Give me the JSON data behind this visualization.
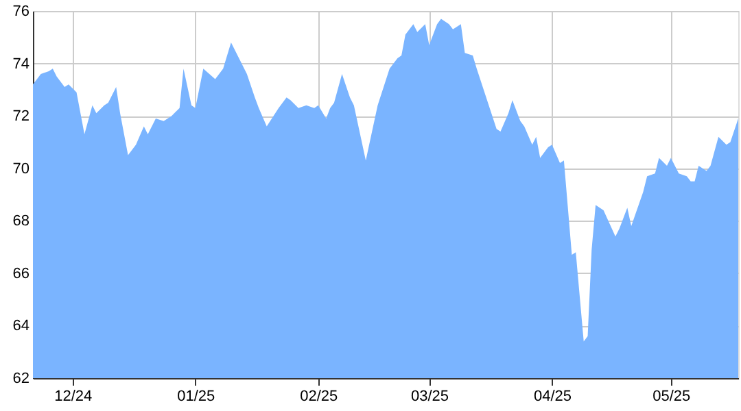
{
  "chart_data": {
    "type": "area",
    "x": [
      "2024-11-21",
      "2024-11-23",
      "2024-11-25",
      "2024-11-26",
      "2024-11-27",
      "2024-11-29",
      "2024-11-30",
      "2024-12-02",
      "2024-12-04",
      "2024-12-06",
      "2024-12-07",
      "2024-12-09",
      "2024-12-10",
      "2024-12-12",
      "2024-12-13",
      "2024-12-15",
      "2024-12-17",
      "2024-12-19",
      "2024-12-20",
      "2024-12-22",
      "2024-12-24",
      "2024-12-26",
      "2024-12-28",
      "2024-12-29",
      "2024-12-31",
      "2025-01-01",
      "2025-01-03",
      "2025-01-06",
      "2025-01-08",
      "2025-01-10",
      "2025-01-14",
      "2025-01-16",
      "2025-01-17",
      "2025-01-19",
      "2025-01-22",
      "2025-01-24",
      "2025-01-25",
      "2025-01-27",
      "2025-01-29",
      "2025-01-31",
      "2025-02-01",
      "2025-02-03",
      "2025-02-04",
      "2025-02-05",
      "2025-02-07",
      "2025-02-09",
      "2025-02-10",
      "2025-02-13",
      "2025-02-16",
      "2025-02-19",
      "2025-02-21",
      "2025-02-22",
      "2025-02-23",
      "2025-02-25",
      "2025-02-26",
      "2025-02-28",
      "2025-03-01",
      "2025-03-03",
      "2025-03-04",
      "2025-03-06",
      "2025-03-07",
      "2025-03-09",
      "2025-03-10",
      "2025-03-12",
      "2025-03-13",
      "2025-03-18",
      "2025-03-19",
      "2025-03-21",
      "2025-03-22",
      "2025-03-24",
      "2025-03-25",
      "2025-03-27",
      "2025-03-28",
      "2025-03-29",
      "2025-03-31",
      "2025-04-01",
      "2025-04-03",
      "2025-04-04",
      "2025-04-06",
      "2025-04-07",
      "2025-04-09",
      "2025-04-10",
      "2025-04-11",
      "2025-04-12",
      "2025-04-14",
      "2025-04-17",
      "2025-04-18",
      "2025-04-20",
      "2025-04-21",
      "2025-04-24",
      "2025-04-25",
      "2025-04-27",
      "2025-04-28",
      "2025-04-30",
      "2025-05-01",
      "2025-05-03",
      "2025-05-05",
      "2025-05-06",
      "2025-05-07",
      "2025-05-08",
      "2025-05-10",
      "2025-05-11",
      "2025-05-13",
      "2025-05-15",
      "2025-05-16",
      "2025-05-18"
    ],
    "values": [
      73.2,
      73.6,
      73.7,
      73.8,
      73.5,
      73.1,
      73.2,
      72.9,
      71.3,
      72.4,
      72.1,
      72.4,
      72.5,
      73.1,
      72.1,
      70.5,
      70.9,
      71.6,
      71.3,
      71.9,
      71.8,
      72.0,
      72.3,
      73.8,
      72.4,
      72.3,
      73.8,
      73.4,
      73.8,
      74.8,
      73.6,
      72.7,
      72.3,
      71.6,
      72.3,
      72.7,
      72.6,
      72.3,
      72.4,
      72.3,
      72.4,
      71.9,
      72.3,
      72.5,
      73.6,
      72.7,
      72.4,
      70.3,
      72.4,
      73.8,
      74.2,
      74.3,
      75.1,
      75.5,
      75.2,
      75.5,
      74.7,
      75.5,
      75.7,
      75.5,
      75.3,
      75.5,
      74.4,
      74.3,
      73.8,
      71.5,
      71.4,
      72.1,
      72.6,
      71.8,
      71.6,
      70.9,
      71.2,
      70.4,
      70.8,
      70.9,
      70.2,
      70.3,
      66.7,
      66.8,
      63.4,
      63.6,
      66.9,
      68.6,
      68.4,
      67.4,
      67.7,
      68.5,
      67.8,
      69.1,
      69.7,
      69.8,
      70.4,
      70.1,
      70.4,
      69.8,
      69.7,
      69.5,
      69.5,
      70.1,
      69.9,
      70.1,
      71.2,
      70.9,
      71.0,
      71.9
    ],
    "color": "#7ab4ff",
    "xlim": [
      "2024-11-21",
      "2025-05-18"
    ],
    "xticks": [
      {
        "value": "2024-12-01",
        "label": "12/24"
      },
      {
        "value": "2025-01-01",
        "label": "01/25"
      },
      {
        "value": "2025-02-01",
        "label": "02/25"
      },
      {
        "value": "2025-03-01",
        "label": "03/25"
      },
      {
        "value": "2025-04-01",
        "label": "04/25"
      },
      {
        "value": "2025-05-01",
        "label": "05/25"
      }
    ],
    "ylim": [
      62,
      76
    ],
    "yticks": [
      62,
      64,
      66,
      68,
      70,
      72,
      74,
      76
    ],
    "grid": true
  }
}
